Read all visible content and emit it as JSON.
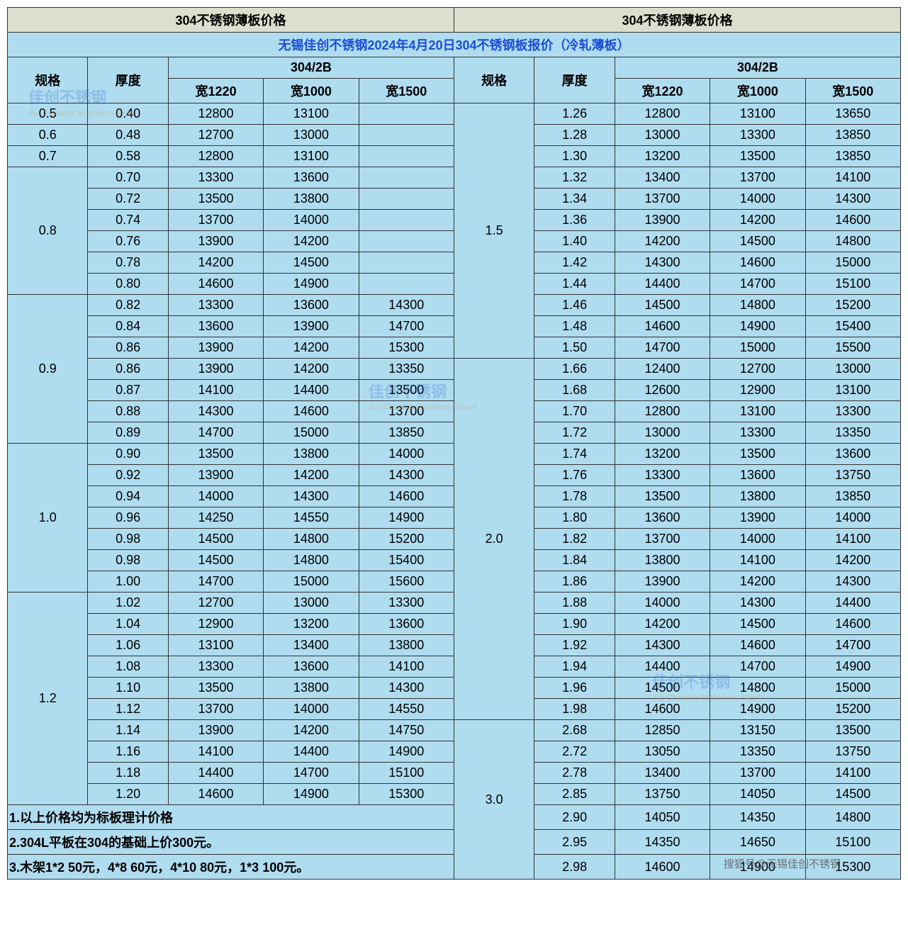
{
  "titles": {
    "left": "304不锈钢薄板价格",
    "right": "304不锈钢薄板价格"
  },
  "subtitle": "无锡佳创不锈钢2024年4月20日304不锈钢板报价（冷轧薄板）",
  "headers": {
    "spec": "规格",
    "thickness": "厚度",
    "grade": "304/2B",
    "w1220": "宽1220",
    "w1000": "宽1000",
    "w1500": "宽1500"
  },
  "left_rows": [
    {
      "spec": "0.5",
      "span": 1,
      "t": "0.40",
      "c": [
        "12800",
        "13100",
        ""
      ]
    },
    {
      "spec": "0.6",
      "span": 1,
      "t": "0.48",
      "c": [
        "12700",
        "13000",
        ""
      ]
    },
    {
      "spec": "0.7",
      "span": 1,
      "t": "0.58",
      "c": [
        "12800",
        "13100",
        ""
      ]
    },
    {
      "spec": "0.8",
      "span": 6,
      "t": "0.70",
      "c": [
        "13300",
        "13600",
        ""
      ]
    },
    {
      "t": "0.72",
      "c": [
        "13500",
        "13800",
        ""
      ]
    },
    {
      "t": "0.74",
      "c": [
        "13700",
        "14000",
        ""
      ]
    },
    {
      "t": "0.76",
      "c": [
        "13900",
        "14200",
        ""
      ]
    },
    {
      "t": "0.78",
      "c": [
        "14200",
        "14500",
        ""
      ]
    },
    {
      "t": "0.80",
      "c": [
        "14600",
        "14900",
        ""
      ]
    },
    {
      "spec": "0.9",
      "span": 7,
      "t": "0.82",
      "c": [
        "13300",
        "13600",
        "14300"
      ]
    },
    {
      "t": "0.84",
      "c": [
        "13600",
        "13900",
        "14700"
      ]
    },
    {
      "t": "0.86",
      "c": [
        "13900",
        "14200",
        "15300"
      ]
    },
    {
      "t": "0.86",
      "c": [
        "13900",
        "14200",
        "13350"
      ]
    },
    {
      "t": "0.87",
      "c": [
        "14100",
        "14400",
        "13500"
      ]
    },
    {
      "t": "0.88",
      "c": [
        "14300",
        "14600",
        "13700"
      ]
    },
    {
      "t": "0.89",
      "c": [
        "14700",
        "15000",
        "13850"
      ]
    },
    {
      "spec": "1.0",
      "span": 7,
      "t": "0.90",
      "c": [
        "13500",
        "13800",
        "14000"
      ]
    },
    {
      "t": "0.92",
      "c": [
        "13900",
        "14200",
        "14300"
      ]
    },
    {
      "t": "0.94",
      "c": [
        "14000",
        "14300",
        "14600"
      ]
    },
    {
      "t": "0.96",
      "c": [
        "14250",
        "14550",
        "14900"
      ]
    },
    {
      "t": "0.98",
      "c": [
        "14500",
        "14800",
        "15200"
      ]
    },
    {
      "t": "0.98",
      "c": [
        "14500",
        "14800",
        "15400"
      ]
    },
    {
      "t": "1.00",
      "c": [
        "14700",
        "15000",
        "15600"
      ]
    },
    {
      "spec": "1.2",
      "span": 10,
      "t": "1.02",
      "c": [
        "12700",
        "13000",
        "13300"
      ]
    },
    {
      "t": "1.04",
      "c": [
        "12900",
        "13200",
        "13600"
      ]
    },
    {
      "t": "1.06",
      "c": [
        "13100",
        "13400",
        "13800"
      ]
    },
    {
      "t": "1.08",
      "c": [
        "13300",
        "13600",
        "14100"
      ]
    },
    {
      "t": "1.10",
      "c": [
        "13500",
        "13800",
        "14300"
      ]
    },
    {
      "t": "1.12",
      "c": [
        "13700",
        "14000",
        "14550"
      ]
    },
    {
      "t": "1.14",
      "c": [
        "13900",
        "14200",
        "14750"
      ]
    },
    {
      "t": "1.16",
      "c": [
        "14100",
        "14400",
        "14900"
      ]
    },
    {
      "t": "1.18",
      "c": [
        "14400",
        "14700",
        "15100"
      ]
    },
    {
      "t": "1.20",
      "c": [
        "14600",
        "14900",
        "15300"
      ]
    }
  ],
  "right_rows": [
    {
      "spec": "1.5",
      "span": 12,
      "t": "1.26",
      "c": [
        "12800",
        "13100",
        "13650"
      ]
    },
    {
      "t": "1.28",
      "c": [
        "13000",
        "13300",
        "13850"
      ]
    },
    {
      "t": "1.30",
      "c": [
        "13200",
        "13500",
        "13850"
      ]
    },
    {
      "t": "1.32",
      "c": [
        "13400",
        "13700",
        "14100"
      ]
    },
    {
      "t": "1.34",
      "c": [
        "13700",
        "14000",
        "14300"
      ]
    },
    {
      "t": "1.36",
      "c": [
        "13900",
        "14200",
        "14600"
      ]
    },
    {
      "t": "1.40",
      "c": [
        "14200",
        "14500",
        "14800"
      ]
    },
    {
      "t": "1.42",
      "c": [
        "14300",
        "14600",
        "15000"
      ]
    },
    {
      "t": "1.44",
      "c": [
        "14400",
        "14700",
        "15100"
      ]
    },
    {
      "t": "1.46",
      "c": [
        "14500",
        "14800",
        "15200"
      ]
    },
    {
      "t": "1.48",
      "c": [
        "14600",
        "14900",
        "15400"
      ]
    },
    {
      "t": "1.50",
      "c": [
        "14700",
        "15000",
        "15500"
      ]
    },
    {
      "spec": "2.0",
      "span": 17,
      "t": "1.66",
      "c": [
        "12400",
        "12700",
        "13000"
      ]
    },
    {
      "t": "1.68",
      "c": [
        "12600",
        "12900",
        "13100"
      ]
    },
    {
      "t": "1.70",
      "c": [
        "12800",
        "13100",
        "13300"
      ]
    },
    {
      "t": "1.72",
      "c": [
        "13000",
        "13300",
        "13350"
      ]
    },
    {
      "t": "1.74",
      "c": [
        "13200",
        "13500",
        "13600"
      ]
    },
    {
      "t": "1.76",
      "c": [
        "13300",
        "13600",
        "13750"
      ]
    },
    {
      "t": "1.78",
      "c": [
        "13500",
        "13800",
        "13850"
      ]
    },
    {
      "t": "1.80",
      "c": [
        "13600",
        "13900",
        "14000"
      ]
    },
    {
      "t": "1.82",
      "c": [
        "13700",
        "14000",
        "14100"
      ]
    },
    {
      "t": "1.84",
      "c": [
        "13800",
        "14100",
        "14200"
      ]
    },
    {
      "t": "1.86",
      "c": [
        "13900",
        "14200",
        "14300"
      ]
    },
    {
      "t": "1.88",
      "c": [
        "14000",
        "14300",
        "14400"
      ]
    },
    {
      "t": "1.90",
      "c": [
        "14200",
        "14500",
        "14600"
      ]
    },
    {
      "t": "1.92",
      "c": [
        "14300",
        "14600",
        "14700"
      ]
    },
    {
      "t": "1.94",
      "c": [
        "14400",
        "14700",
        "14900"
      ]
    },
    {
      "t": "1.96",
      "c": [
        "14500",
        "14800",
        "15000"
      ]
    },
    {
      "t": "1.98",
      "c": [
        "14600",
        "14900",
        "15200"
      ]
    },
    {
      "spec": "3.0",
      "span": 7,
      "t": "2.68",
      "c": [
        "12850",
        "13150",
        "13500"
      ]
    },
    {
      "t": "2.72",
      "c": [
        "13050",
        "13350",
        "13750"
      ]
    },
    {
      "t": "2.78",
      "c": [
        "13400",
        "13700",
        "14100"
      ]
    },
    {
      "t": "2.85",
      "c": [
        "13750",
        "14050",
        "14500"
      ]
    },
    {
      "t": "2.90",
      "c": [
        "14050",
        "14350",
        "14800"
      ]
    },
    {
      "t": "2.95",
      "c": [
        "14350",
        "14650",
        "15100"
      ]
    },
    {
      "t": "2.98",
      "c": [
        "14600",
        "14900",
        "15300"
      ]
    }
  ],
  "notes": [
    "1.以上价格均为标板理计价格",
    "2.304L平板在304的基础上价300元。",
    "3.木架1*2 50元，4*8 60元，4*10 80元，1*3 100元。"
  ],
  "watermarks": {
    "brand": "佳创不锈钢",
    "sub": "Jia Chuang Stainless Steel",
    "sohu": "搜狐号@无锡佳创不锈钢"
  },
  "style": {
    "header_bg": "#dcdfce",
    "body_bg": "#b0dcf0",
    "subtitle_color": "#1a4fd6",
    "border_color": "#333333"
  }
}
